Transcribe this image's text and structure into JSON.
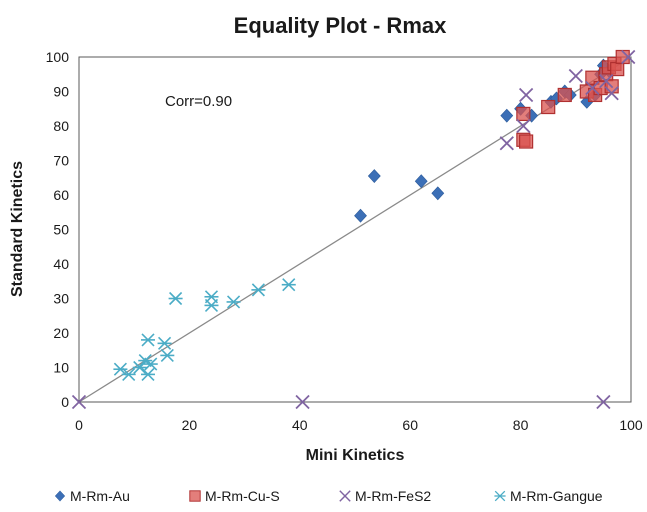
{
  "chart_data": {
    "type": "scatter",
    "title": "Equality Plot - Rmax",
    "xlabel": "Mini Kinetics",
    "ylabel": "Standard Kinetics",
    "xlim": [
      0,
      100
    ],
    "ylim": [
      0,
      100
    ],
    "x_ticks": [
      0,
      20,
      40,
      60,
      80,
      100
    ],
    "y_ticks": [
      0,
      10,
      20,
      30,
      40,
      50,
      60,
      70,
      80,
      90,
      100
    ],
    "grid": false,
    "legend_position": "bottom",
    "annotations": [
      "Corr=0.90"
    ],
    "trendline": {
      "x": [
        0,
        100
      ],
      "y": [
        0,
        100
      ]
    },
    "series": [
      {
        "name": "M-Rm-Au",
        "marker": "diamond",
        "color": "#3c6fb6",
        "points": [
          [
            51,
            54
          ],
          [
            53.5,
            65.5
          ],
          [
            62,
            64
          ],
          [
            65,
            60.5
          ],
          [
            77.5,
            83
          ],
          [
            80,
            85
          ],
          [
            82,
            83
          ],
          [
            85.5,
            87
          ],
          [
            86.5,
            88
          ],
          [
            88,
            90
          ],
          [
            89,
            89
          ],
          [
            92,
            87
          ],
          [
            93.5,
            89
          ],
          [
            94.5,
            95
          ],
          [
            95,
            97.5
          ],
          [
            96,
            96
          ]
        ]
      },
      {
        "name": "M-Rm-Cu-S",
        "marker": "square",
        "color": "#d9534f",
        "points": [
          [
            80.5,
            83.5
          ],
          [
            80.5,
            76
          ],
          [
            81,
            75.5
          ],
          [
            85,
            85.5
          ],
          [
            88,
            89
          ],
          [
            92,
            90
          ],
          [
            93,
            94
          ],
          [
            93.5,
            89
          ],
          [
            94.5,
            91
          ],
          [
            95.5,
            95
          ],
          [
            96,
            97
          ],
          [
            96.5,
            91.5
          ],
          [
            97,
            98
          ],
          [
            97.5,
            96.5
          ],
          [
            98.5,
            100
          ]
        ]
      },
      {
        "name": "M-Rm-FeS2",
        "marker": "x",
        "color": "#8064a2",
        "points": [
          [
            0,
            0
          ],
          [
            40.5,
            0
          ],
          [
            95,
            0
          ],
          [
            77.5,
            75
          ],
          [
            80.5,
            80
          ],
          [
            81,
            89
          ],
          [
            90,
            94.5
          ],
          [
            93,
            91
          ],
          [
            95.5,
            93
          ],
          [
            96.5,
            89.5
          ],
          [
            99.5,
            100
          ]
        ]
      },
      {
        "name": "M-Rm-Gangue",
        "marker": "asterisk",
        "color": "#4bacc6",
        "points": [
          [
            7.5,
            9.5
          ],
          [
            9,
            8
          ],
          [
            11,
            10
          ],
          [
            12,
            12
          ],
          [
            12.5,
            18
          ],
          [
            12.5,
            8
          ],
          [
            13,
            11
          ],
          [
            15.5,
            17
          ],
          [
            16,
            13.5
          ],
          [
            17.5,
            30
          ],
          [
            24,
            30.5
          ],
          [
            24,
            28
          ],
          [
            28,
            29
          ],
          [
            32.5,
            32.5
          ],
          [
            38,
            34
          ]
        ]
      }
    ]
  }
}
